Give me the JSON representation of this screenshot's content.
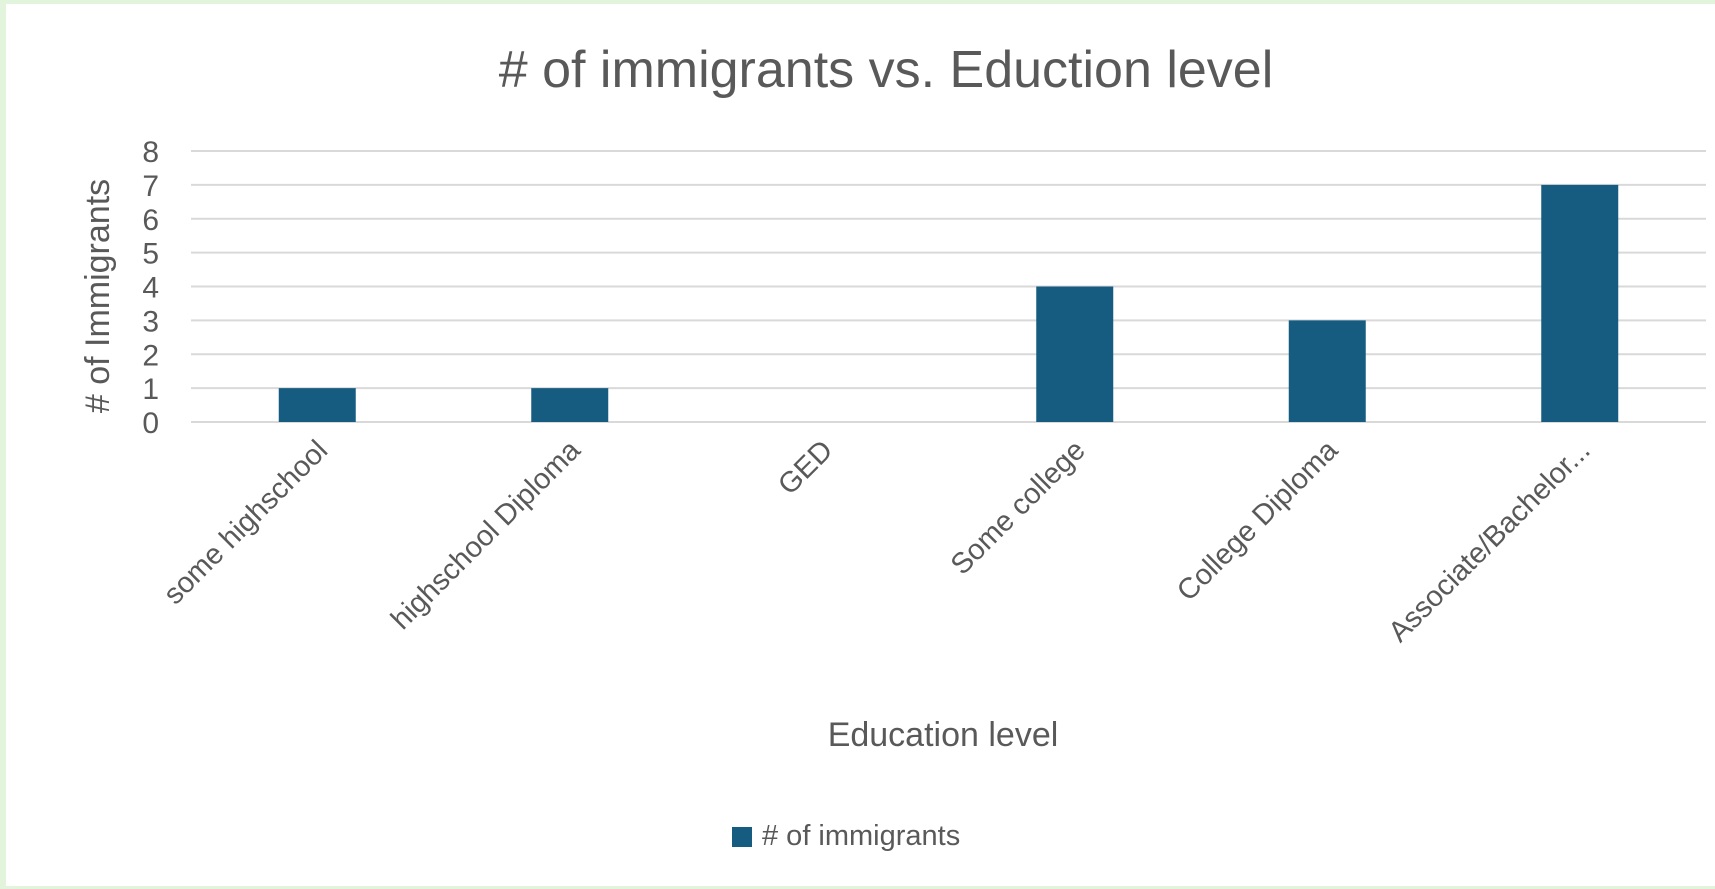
{
  "chart_data": {
    "type": "bar",
    "title": "# of immigrants vs. Eduction level",
    "xlabel": "Education level",
    "ylabel": "# of Immigrants",
    "categories": [
      "some highschool",
      "highschool Diploma",
      "GED",
      "Some college",
      "College Diploma",
      "Associate/Bachelor..."
    ],
    "series": [
      {
        "name": "# of immigrants",
        "values": [
          1,
          1,
          0,
          4,
          3,
          7
        ]
      }
    ],
    "ylim": [
      0,
      8
    ],
    "yticks": [
      "0",
      "1",
      "2",
      "3",
      "4",
      "5",
      "6",
      "7",
      "8"
    ],
    "grid": true,
    "legend_position": "bottom",
    "colors": {
      "bar": "#165c80",
      "grid": "#d9d9d9",
      "text": "#595959",
      "background": "#e2f5dc"
    }
  }
}
